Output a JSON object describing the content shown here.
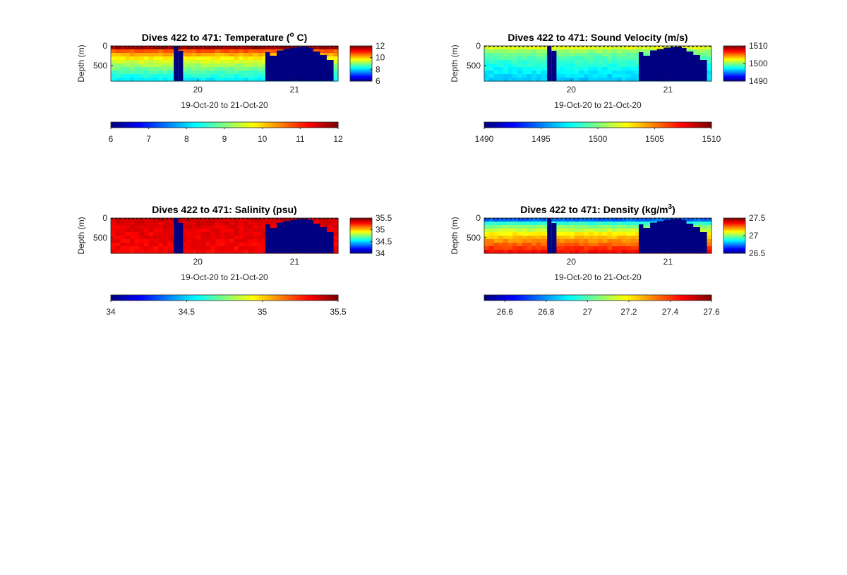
{
  "chart_data": [
    {
      "id": "temperature",
      "type": "heatmap",
      "title": "Dives 422 to 471: Temperature (",
      "title_sup": "o",
      "title_tail": " C)",
      "ylabel": "Depth (m)",
      "xlabel": "19-Oct-20 to 21-Oct-20",
      "x_ticks": [
        "20",
        "21"
      ],
      "y_ticks": [
        "0",
        "500"
      ],
      "x_range": [
        19.1,
        21.45
      ],
      "y_range": [
        0,
        900
      ],
      "x_tick_values": [
        20,
        21
      ],
      "y_tick_values": [
        0,
        500
      ],
      "clim": [
        6,
        12
      ],
      "side_colorbar_ticks": [
        "12",
        "10",
        "8",
        "6"
      ],
      "side_colorbar_values": [
        12,
        10,
        8,
        6
      ],
      "bottom_colorbar_ticks": [
        "6",
        "7",
        "8",
        "9",
        "10",
        "11",
        "12"
      ],
      "bottom_colorbar_values": [
        6,
        7,
        8,
        9,
        10,
        11,
        12
      ],
      "surface_value": 11.8,
      "deep_value": 8.2,
      "gap_value": 6
    },
    {
      "id": "sound-velocity",
      "type": "heatmap",
      "title": "Dives 422 to 471: Sound Velocity (m/s)",
      "ylabel": "Depth (m)",
      "xlabel": "19-Oct-20 to 21-Oct-20",
      "x_ticks": [
        "20",
        "21"
      ],
      "y_ticks": [
        "0",
        "500"
      ],
      "x_range": [
        19.1,
        21.45
      ],
      "y_range": [
        0,
        900
      ],
      "x_tick_values": [
        20,
        21
      ],
      "y_tick_values": [
        0,
        500
      ],
      "clim": [
        1490,
        1510
      ],
      "side_colorbar_ticks": [
        "1510",
        "1500",
        "1490"
      ],
      "side_colorbar_values": [
        1510,
        1500,
        1490
      ],
      "bottom_colorbar_ticks": [
        "1490",
        "1495",
        "1500",
        "1505",
        "1510"
      ],
      "bottom_colorbar_values": [
        1490,
        1495,
        1500,
        1505,
        1510
      ],
      "surface_value": 1502,
      "deep_value": 1496.5,
      "gap_value": 1490
    },
    {
      "id": "salinity",
      "type": "heatmap",
      "title": "Dives 422 to 471: Salinity (psu)",
      "ylabel": "Depth (m)",
      "xlabel": "19-Oct-20 to 21-Oct-20",
      "x_ticks": [
        "20",
        "21"
      ],
      "y_ticks": [
        "0",
        "500"
      ],
      "x_range": [
        19.1,
        21.45
      ],
      "y_range": [
        0,
        900
      ],
      "x_tick_values": [
        20,
        21
      ],
      "y_tick_values": [
        0,
        500
      ],
      "clim": [
        34,
        35.5
      ],
      "side_colorbar_ticks": [
        "35.5",
        "35",
        "34.5",
        "34"
      ],
      "side_colorbar_values": [
        35.5,
        35,
        34.5,
        34
      ],
      "bottom_colorbar_ticks": [
        "34",
        "34.5",
        "35",
        "35.5"
      ],
      "bottom_colorbar_values": [
        34,
        34.5,
        35,
        35.5
      ],
      "surface_value": 35.38,
      "deep_value": 35.32,
      "gap_value": 34
    },
    {
      "id": "density",
      "type": "heatmap",
      "title": "Dives 422 to 471: Density (kg/m",
      "title_sup": "3",
      "title_tail": ")",
      "ylabel": "Depth (m)",
      "xlabel": "19-Oct-20 to 21-Oct-20",
      "x_ticks": [
        "20",
        "21"
      ],
      "y_ticks": [
        "0",
        "500"
      ],
      "x_range": [
        19.1,
        21.45
      ],
      "y_range": [
        0,
        900
      ],
      "x_tick_values": [
        20,
        21
      ],
      "y_tick_values": [
        0,
        500
      ],
      "clim": [
        26.5,
        27.6
      ],
      "side_colorbar_ticks": [
        "27.5",
        "27",
        "26.5"
      ],
      "side_colorbar_values": [
        27.5,
        27,
        26.5
      ],
      "bottom_colorbar_ticks": [
        "26.6",
        "26.8",
        "27",
        "27.2",
        "27.4",
        "27.6"
      ],
      "bottom_colorbar_values": [
        26.6,
        26.8,
        27,
        27.2,
        27.4,
        27.6
      ],
      "surface_value": 26.75,
      "deep_value": 27.45,
      "gap_value": 26.5
    }
  ]
}
